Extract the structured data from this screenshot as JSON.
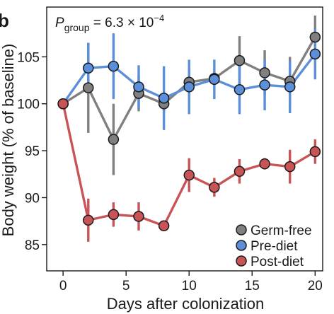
{
  "panel_label": "b",
  "annotation": {
    "main": "P",
    "subscript": "group",
    "value": " = 6.3 × 10",
    "exponent": "−4"
  },
  "chart_data": {
    "type": "line",
    "xlabel": "Days after colonization",
    "ylabel": "Body weight (% of baseline)",
    "xlim": [
      -1.3,
      20.6
    ],
    "ylim": [
      82.2,
      110.3
    ],
    "xticks": [
      0,
      5,
      10,
      15,
      20
    ],
    "yticks": [
      85,
      90,
      95,
      100,
      105
    ],
    "grid": false,
    "legend_position": "bottom-right",
    "x": [
      0,
      2,
      4,
      6,
      8,
      10,
      12,
      14,
      16,
      18,
      20
    ],
    "series": [
      {
        "name": "Germ-free",
        "color": "#808080",
        "values": [
          100.0,
          101.7,
          96.2,
          101.1,
          100.0,
          102.3,
          102.7,
          104.6,
          103.3,
          102.4,
          107.1
        ],
        "err": [
          0.0,
          4.8,
          3.8,
          1.9,
          1.0,
          1.4,
          0.8,
          2.6,
          2.4,
          2.6,
          2.3
        ]
      },
      {
        "name": "Pre-diet",
        "color": "#5b8fd9",
        "values": [
          100.0,
          103.8,
          104.0,
          101.8,
          100.6,
          101.8,
          102.6,
          101.5,
          102.0,
          101.8,
          105.3
        ],
        "err": [
          0.0,
          2.7,
          3.5,
          2.3,
          3.4,
          2.9,
          2.1,
          2.6,
          2.7,
          2.8,
          2.7
        ]
      },
      {
        "name": "Post-diet",
        "color": "#c85457",
        "values": [
          100.0,
          87.6,
          88.2,
          88.0,
          87.0,
          92.4,
          91.1,
          92.8,
          93.6,
          93.3,
          94.9
        ],
        "err": [
          0.0,
          2.3,
          1.3,
          1.5,
          0.5,
          1.8,
          1.0,
          1.3,
          0.6,
          1.8,
          1.3
        ]
      }
    ]
  }
}
